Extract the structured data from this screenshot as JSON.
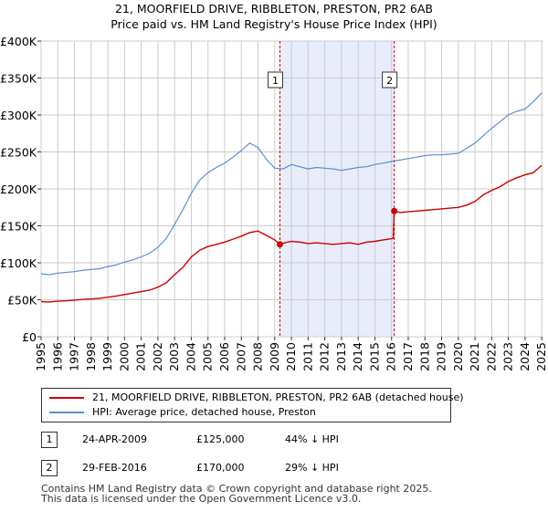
{
  "title_line1": "21, MOORFIELD DRIVE, RIBBLETON, PRESTON, PR2 6AB",
  "title_line2": "Price paid vs. HM Land Registry's House Price Index (HPI)",
  "legend": {
    "property_label": "21, MOORFIELD DRIVE, RIBBLETON, PRESTON, PR2 6AB (detached house)",
    "hpi_label": "HPI: Average price, detached house, Preston"
  },
  "colors": {
    "property": "#cc0000",
    "hpi": "#5b8fd4",
    "shade": "#e8ecfb",
    "grid": "#cccccc",
    "marker_line": "#cc0000"
  },
  "transactions": [
    {
      "num": "1",
      "date": "24-APR-2009",
      "price": "£125,000",
      "hpi_diff": "44% ↓ HPI"
    },
    {
      "num": "2",
      "date": "29-FEB-2016",
      "price": "£170,000",
      "hpi_diff": "29% ↓ HPI"
    }
  ],
  "footer_line1": "Contains HM Land Registry data © Crown copyright and database right 2025.",
  "footer_line2": "This data is licensed under the Open Government Licence v3.0.",
  "chart_data": {
    "type": "line",
    "title": "21, MOORFIELD DRIVE, RIBBLETON, PRESTON, PR2 6AB — Price paid vs. HM Land Registry's House Price Index (HPI)",
    "xlabel": "",
    "ylabel": "",
    "xlim": [
      1995,
      2025.1
    ],
    "ylim": [
      0,
      400000
    ],
    "x_ticks": [
      1995,
      1996,
      1997,
      1998,
      1999,
      2000,
      2001,
      2002,
      2003,
      2004,
      2005,
      2006,
      2007,
      2008,
      2009,
      2010,
      2011,
      2012,
      2013,
      2014,
      2015,
      2016,
      2017,
      2018,
      2019,
      2020,
      2021,
      2022,
      2023,
      2024,
      2025
    ],
    "y_ticks": [
      0,
      50000,
      100000,
      150000,
      200000,
      250000,
      300000,
      350000,
      400000
    ],
    "y_tick_labels": [
      "£0",
      "£50K",
      "£100K",
      "£150K",
      "£200K",
      "£250K",
      "£300K",
      "£350K",
      "£400K"
    ],
    "grid": true,
    "shaded_range": [
      2009.31,
      2016.16
    ],
    "sale_markers": [
      {
        "label": "1",
        "x": 2009.31,
        "y": 125000
      },
      {
        "label": "2",
        "x": 2016.16,
        "y": 170000
      }
    ],
    "series": [
      {
        "name": "21, MOORFIELD DRIVE, RIBBLETON, PRESTON, PR2 6AB (detached house)",
        "x": [
          1995,
          1995.5,
          1996,
          1996.5,
          1997,
          1997.5,
          1998,
          1998.5,
          1999,
          1999.5,
          2000,
          2000.5,
          2001,
          2001.5,
          2002,
          2002.5,
          2003,
          2003.5,
          2004,
          2004.5,
          2005,
          2005.5,
          2006,
          2006.5,
          2007,
          2007.5,
          2008,
          2008.5,
          2009,
          2009.31,
          2009.6,
          2010,
          2010.5,
          2011,
          2011.5,
          2012,
          2012.5,
          2013,
          2013.5,
          2014,
          2014.5,
          2015,
          2015.5,
          2016.1,
          2016.16,
          2016.5,
          2017,
          2017.5,
          2018,
          2018.5,
          2019,
          2019.5,
          2020,
          2020.5,
          2021,
          2021.5,
          2022,
          2022.5,
          2023,
          2023.5,
          2024,
          2024.5,
          2025
        ],
        "y": [
          47500,
          47000,
          48000,
          48500,
          49500,
          50500,
          51000,
          52000,
          53500,
          55000,
          57000,
          59000,
          61000,
          63000,
          67000,
          73000,
          84000,
          94000,
          108000,
          117000,
          122000,
          125000,
          128000,
          132000,
          136000,
          141000,
          143000,
          137000,
          131000,
          125000,
          127000,
          129000,
          128000,
          126000,
          127000,
          126000,
          125000,
          126000,
          127000,
          125000,
          128000,
          129000,
          131000,
          133000,
          170000,
          168000,
          169000,
          170000,
          171000,
          172000,
          173000,
          174000,
          175000,
          178000,
          183000,
          192000,
          198000,
          203000,
          210000,
          215000,
          219000,
          222000,
          232000
        ]
      },
      {
        "name": "HPI: Average price, detached house, Preston",
        "x": [
          1995,
          1995.5,
          1996,
          1996.5,
          1997,
          1997.5,
          1998,
          1998.5,
          1999,
          1999.5,
          2000,
          2000.5,
          2001,
          2001.5,
          2002,
          2002.5,
          2003,
          2003.5,
          2004,
          2004.5,
          2005,
          2005.5,
          2006,
          2006.5,
          2007,
          2007.5,
          2008,
          2008.5,
          2009,
          2009.5,
          2010,
          2010.5,
          2011,
          2011.5,
          2012,
          2012.5,
          2013,
          2013.5,
          2014,
          2014.5,
          2015,
          2015.5,
          2016,
          2016.5,
          2017,
          2017.5,
          2018,
          2018.5,
          2019,
          2019.5,
          2020,
          2020.5,
          2021,
          2021.5,
          2022,
          2022.5,
          2023,
          2023.5,
          2024,
          2024.5,
          2025
        ],
        "y": [
          85000,
          84000,
          86000,
          87000,
          88000,
          90000,
          91000,
          92000,
          95000,
          97000,
          101000,
          104000,
          108000,
          113000,
          121000,
          133000,
          152000,
          172000,
          194000,
          212000,
          222000,
          229000,
          235000,
          243000,
          252000,
          262000,
          256000,
          240000,
          228000,
          227000,
          233000,
          230000,
          227000,
          229000,
          228000,
          227000,
          225000,
          227000,
          229000,
          230000,
          233000,
          235000,
          237000,
          239000,
          241000,
          243000,
          245000,
          246000,
          246000,
          247000,
          248000,
          255000,
          262000,
          272000,
          282000,
          291000,
          300000,
          305000,
          308000,
          318000,
          330000
        ]
      }
    ]
  }
}
